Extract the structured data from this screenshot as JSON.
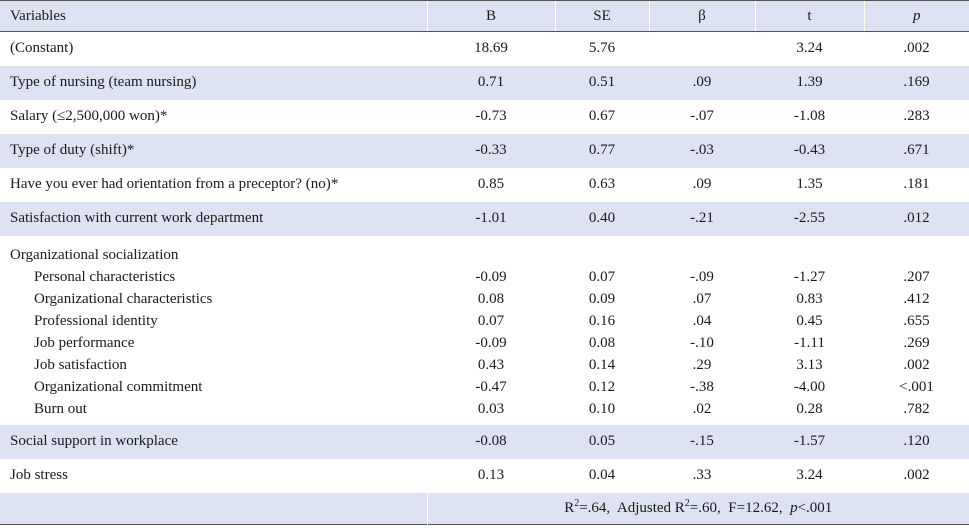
{
  "headers": {
    "variables": "Variables",
    "b": "B",
    "se": "SE",
    "beta": "β",
    "t": "t",
    "p": "p"
  },
  "rows": [
    {
      "label": "(Constant)",
      "b": "18.69",
      "se": "5.76",
      "beta": "",
      "t": "3.24",
      "p": ".002"
    },
    {
      "label": "Type of nursing (team nursing)",
      "b": "0.71",
      "se": "0.51",
      "beta": ".09",
      "t": "1.39",
      "p": ".169"
    },
    {
      "label": "Salary (≤2,500,000 won)*",
      "b": "-0.73",
      "se": "0.67",
      "beta": "-.07",
      "t": "-1.08",
      "p": ".283"
    },
    {
      "label": "Type of duty (shift)*",
      "b": "-0.33",
      "se": "0.77",
      "beta": "-.03",
      "t": "-0.43",
      "p": ".671"
    },
    {
      "label": "Have you ever had orientation from a preceptor? (no)*",
      "b": "0.85",
      "se": "0.63",
      "beta": ".09",
      "t": "1.35",
      "p": ".181"
    },
    {
      "label": "Satisfaction with current work department",
      "b": "-1.01",
      "se": "0.40",
      "beta": "-.21",
      "t": "-2.55",
      "p": ".012"
    }
  ],
  "group": {
    "label": "Organizational socialization",
    "items": [
      {
        "label": "Personal characteristics",
        "b": "-0.09",
        "se": "0.07",
        "beta": "-.09",
        "t": "-1.27",
        "p": ".207"
      },
      {
        "label": "Organizational characteristics",
        "b": "0.08",
        "se": "0.09",
        "beta": ".07",
        "t": "0.83",
        "p": ".412"
      },
      {
        "label": "Professional identity",
        "b": "0.07",
        "se": "0.16",
        "beta": ".04",
        "t": "0.45",
        "p": ".655"
      },
      {
        "label": "Job performance",
        "b": "-0.09",
        "se": "0.08",
        "beta": "-.10",
        "t": "-1.11",
        "p": ".269"
      },
      {
        "label": "Job satisfaction",
        "b": "0.43",
        "se": "0.14",
        "beta": ".29",
        "t": "3.13",
        "p": ".002"
      },
      {
        "label": "Organizational commitment",
        "b": "-0.47",
        "se": "0.12",
        "beta": "-.38",
        "t": "-4.00",
        "p": "<.001"
      },
      {
        "label": "Burn out",
        "b": "0.03",
        "se": "0.10",
        "beta": ".02",
        "t": "0.28",
        "p": ".782"
      }
    ]
  },
  "tail_rows": [
    {
      "label": "Social support in workplace",
      "b": "-0.08",
      "se": "0.05",
      "beta": "-.15",
      "t": "-1.57",
      "p": ".120"
    },
    {
      "label": "Job stress",
      "b": "0.13",
      "se": "0.04",
      "beta": ".33",
      "t": "3.24",
      "p": ".002"
    }
  ],
  "footer": {
    "r2_prefix": "R",
    "r2_sup": "2",
    "r2_value": "=.64,",
    "adj_prefix": "Adjusted R",
    "adj_sup": "2",
    "adj_value": "=.60,",
    "f_text": "F=12.62,",
    "p_symbol": "p",
    "p_text": "<.001"
  },
  "colors": {
    "shade": "#dde3f3",
    "rule": "#555555"
  }
}
